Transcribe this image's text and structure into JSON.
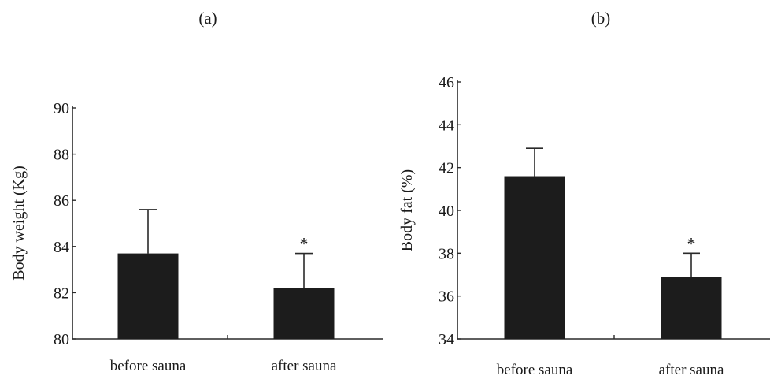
{
  "chart_data": [
    {
      "type": "bar",
      "panel_label": "(a)",
      "categories": [
        "before sauna",
        "after sauna"
      ],
      "values": [
        83.7,
        82.2
      ],
      "error_upper": [
        85.6,
        83.7
      ],
      "significance": [
        "",
        "*"
      ],
      "ylabel": "Body weight (Kg)",
      "yticks": [
        80,
        82,
        84,
        86,
        88,
        90
      ],
      "ylim": [
        80,
        90
      ],
      "bar_color": "#1c1c1c"
    },
    {
      "type": "bar",
      "panel_label": "(b)",
      "categories": [
        "before sauna",
        "after sauna"
      ],
      "values": [
        41.6,
        36.9
      ],
      "error_upper": [
        42.9,
        38.0
      ],
      "significance": [
        "",
        "*"
      ],
      "ylabel": "Body fat (%)",
      "yticks": [
        34,
        36,
        38,
        40,
        42,
        44,
        46
      ],
      "ylim": [
        34,
        46
      ],
      "bar_color": "#1c1c1c"
    }
  ]
}
